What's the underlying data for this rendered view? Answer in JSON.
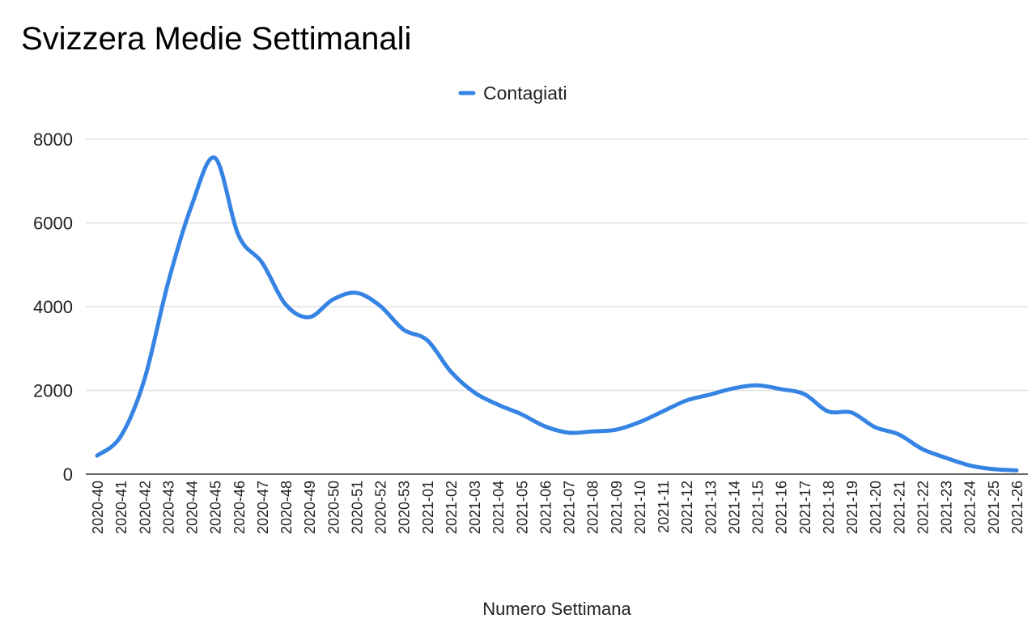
{
  "chart_data": {
    "type": "line",
    "title": "Svizzera Medie Settimanali",
    "xlabel": "Numero Settimana",
    "ylabel": "",
    "ylim": [
      0,
      8000
    ],
    "yticks": [
      0,
      2000,
      4000,
      6000,
      8000
    ],
    "grid": true,
    "legend_position": "top",
    "smooth": true,
    "categories": [
      "2020-40",
      "2020-41",
      "2020-42",
      "2020-43",
      "2020-44",
      "2020-45",
      "2020-46",
      "2020-47",
      "2020-48",
      "2020-49",
      "2020-50",
      "2020-51",
      "2020-52",
      "2020-53",
      "2021-01",
      "2021-02",
      "2021-03",
      "2021-04",
      "2021-05",
      "2021-06",
      "2021-07",
      "2021-08",
      "2021-09",
      "2021-10",
      "2021-11",
      "2021-12",
      "2021-13",
      "2021-14",
      "2021-15",
      "2021-16",
      "2021-17",
      "2021-18",
      "2021-19",
      "2021-20",
      "2021-21",
      "2021-22",
      "2021-23",
      "2021-24",
      "2021-25",
      "2021-26"
    ],
    "series": [
      {
        "name": "Contagiati",
        "color": "#3584e4",
        "values": [
          440,
          900,
          2250,
          4550,
          6400,
          7550,
          5700,
          5050,
          4050,
          3750,
          4170,
          4330,
          4020,
          3450,
          3200,
          2450,
          1950,
          1660,
          1430,
          1140,
          990,
          1020,
          1060,
          1240,
          1500,
          1760,
          1900,
          2050,
          2120,
          2030,
          1910,
          1500,
          1470,
          1120,
          950,
          600,
          390,
          210,
          120,
          90
        ]
      }
    ]
  }
}
